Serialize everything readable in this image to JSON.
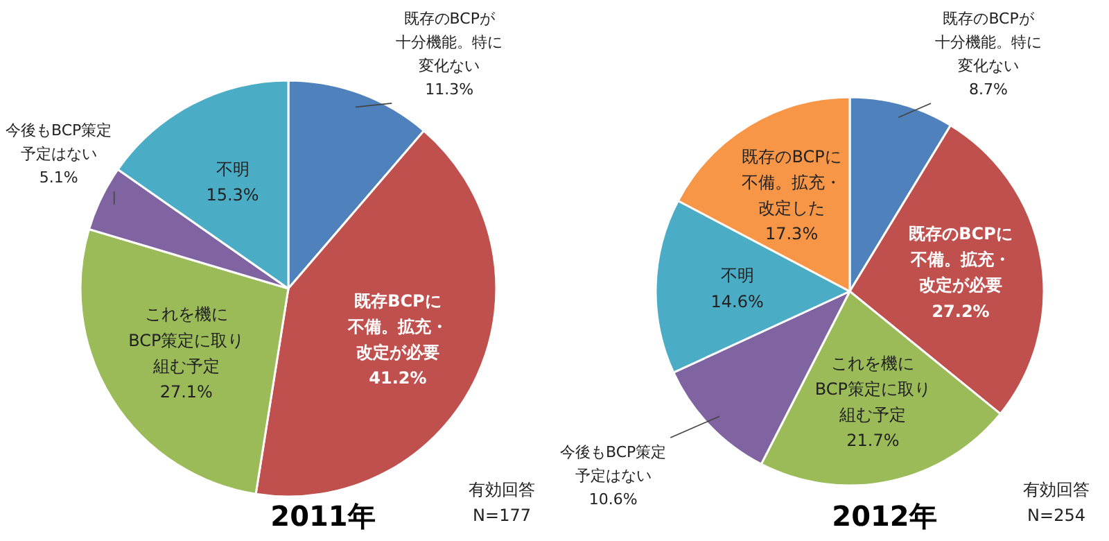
{
  "chart_data": [
    {
      "type": "pie",
      "title": "2011年",
      "categories": [
        "既存のBCPが十分機能。特に変化ない",
        "既存BCPに不備。拡充・改定が必要",
        "これを機にBCP策定に取り組む予定",
        "今後もBCP策定予定はない",
        "不明"
      ],
      "values": [
        11.3,
        41.2,
        27.1,
        5.1,
        15.3
      ],
      "value_labels": [
        "11.3%",
        "41.2%",
        "27.1%",
        "5.1%",
        "15.3%"
      ],
      "colors": [
        "#4f81bd",
        "#c0504d",
        "#9bbb59",
        "#8064a2",
        "#4bacc6"
      ],
      "annotations": [
        "有効回答 N=177"
      ]
    },
    {
      "type": "pie",
      "title": "2012年",
      "categories": [
        "既存のBCPが十分機能。特に変化ない",
        "既存のBCPに不備。拡充・改定が必要",
        "これを機にBCP策定に取り組む予定",
        "今後もBCP策定予定はない",
        "不明",
        "既存のBCPに不備。拡充・改定した"
      ],
      "values": [
        8.7,
        27.2,
        21.7,
        10.6,
        14.6,
        17.3
      ],
      "value_labels": [
        "8.7%",
        "27.2%",
        "21.7%",
        "10.6%",
        "14.6%",
        "17.3%"
      ],
      "colors": [
        "#4f81bd",
        "#c0504d",
        "#9bbb59",
        "#8064a2",
        "#4bacc6",
        "#f79646"
      ],
      "annotations": [
        "有効回答 N=254"
      ]
    }
  ]
}
